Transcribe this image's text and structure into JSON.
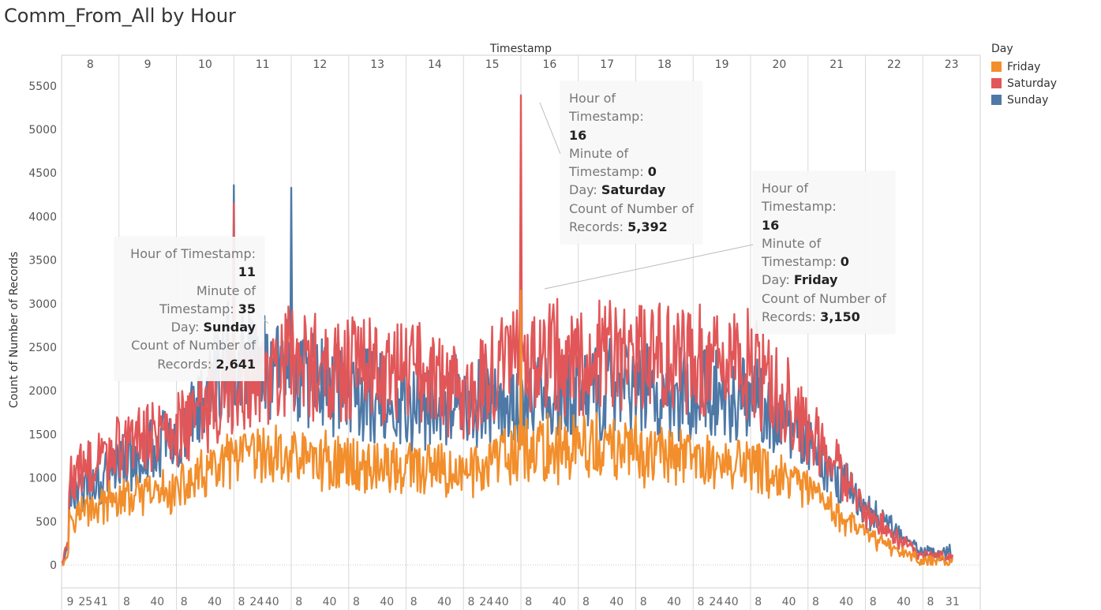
{
  "title": "Comm_From_All by Hour",
  "legend": {
    "title": "Day",
    "items": [
      {
        "label": "Friday",
        "color": "#F28E2B"
      },
      {
        "label": "Saturday",
        "color": "#E15759"
      },
      {
        "label": "Sunday",
        "color": "#4E79A7"
      }
    ]
  },
  "tooltips": [
    {
      "hour_label": "Hour of Timestamp:",
      "hour": "11",
      "minute_label": "Minute of Timestamp:",
      "minute": "35",
      "day_label": "Day:",
      "day": "Sunday",
      "count_label": "Count of Number of Records:",
      "count": "2,641"
    },
    {
      "hour_label": "Hour of Timestamp:",
      "hour": "16",
      "minute_label": "Minute of Timestamp:",
      "minute": "0",
      "day_label": "Day:",
      "day": "Saturday",
      "count_label": "Count of Number of Records:",
      "count": "5,392"
    },
    {
      "hour_label": "Hour of Timestamp:",
      "hour": "16",
      "minute_label": "Minute of Timestamp:",
      "minute": "0",
      "day_label": "Day:",
      "day": "Friday",
      "count_label": "Count of Number of Records:",
      "count": "3,150"
    }
  ],
  "chart_data": {
    "type": "line",
    "title": "Comm_From_All by Hour",
    "xlabel": "Timestamp",
    "ylabel": "Count of Number of Records",
    "ylim": [
      -350,
      5750
    ],
    "yticks": [
      0,
      500,
      1000,
      1500,
      2000,
      2500,
      3000,
      3500,
      4000,
      4500,
      5000,
      5500
    ],
    "hours": [
      8,
      9,
      10,
      11,
      12,
      13,
      14,
      15,
      16,
      17,
      18,
      19,
      20,
      21,
      22,
      23
    ],
    "minute_ticks": [
      {
        "hour": 8,
        "labels": [
          9,
          25,
          41
        ]
      },
      {
        "hour": 9,
        "labels": [
          8,
          40
        ]
      },
      {
        "hour": 10,
        "labels": [
          8,
          40
        ]
      },
      {
        "hour": 11,
        "labels": [
          8,
          24,
          40
        ]
      },
      {
        "hour": 12,
        "labels": [
          8,
          40
        ]
      },
      {
        "hour": 13,
        "labels": [
          8,
          40
        ]
      },
      {
        "hour": 14,
        "labels": [
          8,
          40
        ]
      },
      {
        "hour": 15,
        "labels": [
          8,
          24,
          40
        ]
      },
      {
        "hour": 16,
        "labels": [
          8,
          40
        ]
      },
      {
        "hour": 17,
        "labels": [
          8,
          40
        ]
      },
      {
        "hour": 18,
        "labels": [
          8,
          40
        ]
      },
      {
        "hour": 19,
        "labels": [
          8,
          24,
          40
        ]
      },
      {
        "hour": 20,
        "labels": [
          8,
          40
        ]
      },
      {
        "hour": 21,
        "labels": [
          8,
          40
        ]
      },
      {
        "hour": 22,
        "labels": [
          8,
          40
        ]
      },
      {
        "hour": 23,
        "labels": [
          8,
          31
        ]
      }
    ],
    "series": [
      {
        "name": "Friday",
        "color": "#F28E2B",
        "hourly_level": [
          550,
          750,
          850,
          1200,
          1250,
          1150,
          1100,
          1050,
          1300,
          1350,
          1300,
          1200,
          1150,
          850,
          350,
          50
        ],
        "peaks": [
          {
            "hour": 16,
            "minute": 0,
            "value": 3150
          }
        ]
      },
      {
        "name": "Saturday",
        "color": "#E15759",
        "hourly_level": [
          900,
          1350,
          1600,
          2000,
          2350,
          2250,
          2200,
          2000,
          2350,
          2400,
          2400,
          2350,
          2300,
          1600,
          600,
          100
        ],
        "peaks": [
          {
            "hour": 16,
            "minute": 0,
            "value": 5392
          },
          {
            "hour": 11,
            "minute": 0,
            "value": 4150
          }
        ]
      },
      {
        "name": "Sunday",
        "color": "#4E79A7",
        "hourly_level": [
          700,
          1150,
          1450,
          2500,
          2150,
          2000,
          1850,
          1850,
          1900,
          1950,
          2050,
          2000,
          1950,
          1400,
          650,
          150
        ],
        "peaks": [
          {
            "hour": 11,
            "minute": 0,
            "value": 4360
          },
          {
            "hour": 12,
            "minute": 0,
            "value": 4330
          },
          {
            "hour": 11,
            "minute": 35,
            "value": 2641
          }
        ]
      }
    ]
  }
}
